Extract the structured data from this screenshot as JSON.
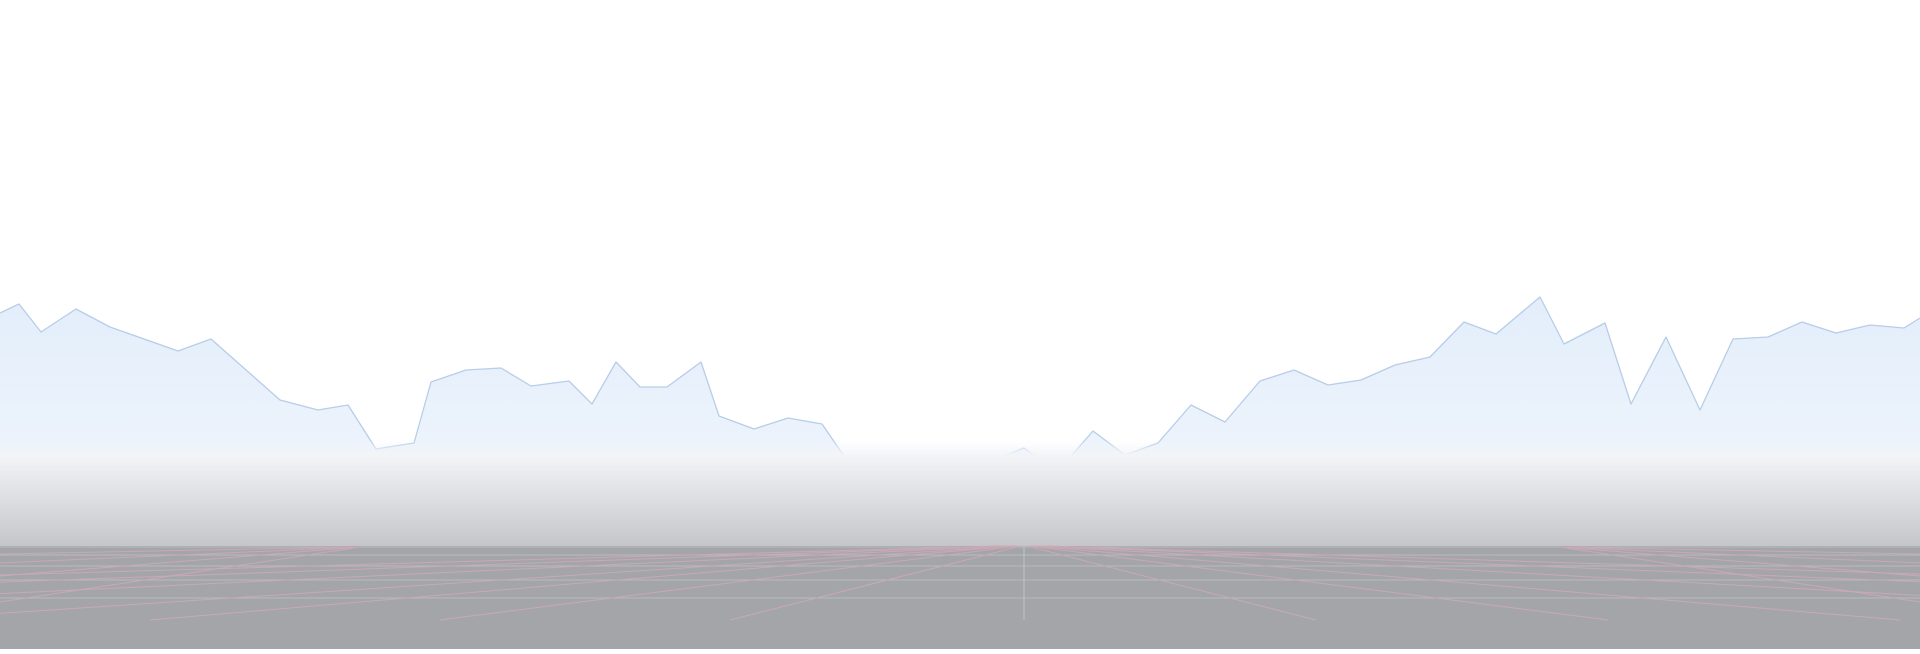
{
  "scene": {
    "colors": {
      "background": "#ffffff",
      "mountain_fill_top": "#e3eefb",
      "mountain_fill_bottom": "#f3f7fc",
      "mountain_stroke": "#b7cde8",
      "haze_top": "#f4f7fb",
      "haze_bottom": "#c5c6ca",
      "floor": "#a4a5a9",
      "grid_line_light": "#b9bbbf",
      "grid_line_pink": "#c9a9b4",
      "grid_line_center": "#b8c7c9"
    }
  }
}
